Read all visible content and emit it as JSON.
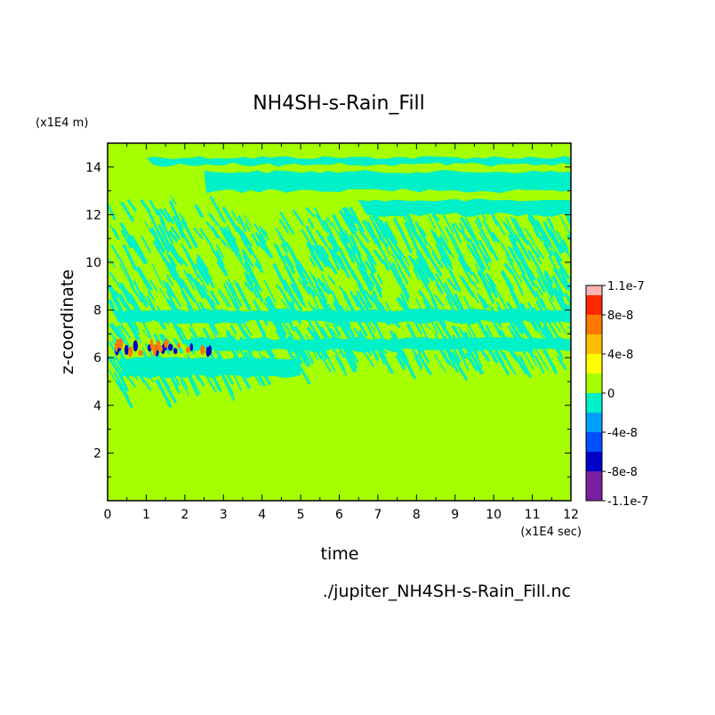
{
  "chart_data": {
    "type": "heatmap",
    "title": "NH4SH-s-Rain_Fill",
    "xlabel": "time",
    "ylabel": "z-coordinate",
    "x_unit": "(x1E4 sec)",
    "y_unit": "(x1E4 m)",
    "source_file": "./jupiter_NH4SH-s-Rain_Fill.nc",
    "xlim": [
      0,
      12
    ],
    "ylim": [
      0,
      15
    ],
    "x_ticks": [
      0,
      1,
      2,
      3,
      4,
      5,
      6,
      7,
      8,
      9,
      10,
      11,
      12
    ],
    "y_ticks": [
      2,
      4,
      6,
      8,
      10,
      12,
      14
    ],
    "grid": false,
    "colorbar": {
      "placement": "right",
      "labels": [
        "1.1e-7",
        "8e-8",
        "4e-8",
        "0",
        "-4e-8",
        "-8e-8",
        "-1.1e-7"
      ],
      "label_values": [
        1.1e-07,
        8e-08,
        4e-08,
        0,
        -4e-08,
        -8e-08,
        -1.1e-07
      ],
      "levels": [
        {
          "min": -1.1e-07,
          "max": -8e-08,
          "color": "#7a1fa0"
        },
        {
          "min": -8e-08,
          "max": -6e-08,
          "color": "#0000c8"
        },
        {
          "min": -6e-08,
          "max": -4e-08,
          "color": "#0050ff"
        },
        {
          "min": -4e-08,
          "max": -2e-08,
          "color": "#00a0ff"
        },
        {
          "min": -2e-08,
          "max": 0,
          "color": "#00f0c8"
        },
        {
          "min": 0,
          "max": 2e-08,
          "color": "#a6ff00"
        },
        {
          "min": 2e-08,
          "max": 4e-08,
          "color": "#ffff00"
        },
        {
          "min": 4e-08,
          "max": 6e-08,
          "color": "#ffbe00"
        },
        {
          "min": 6e-08,
          "max": 8e-08,
          "color": "#ff7800"
        },
        {
          "min": 8e-08,
          "max": 1e-07,
          "color": "#ff2800"
        },
        {
          "min": 1e-07,
          "max": 1.1e-07,
          "color": "#ffb4b4"
        }
      ]
    },
    "field": {
      "background_value": 1e-08,
      "regions": [
        {
          "kind": "band",
          "x": [
            1.0,
            12.0
          ],
          "z": [
            14.1,
            14.4
          ],
          "value": -1e-08
        },
        {
          "kind": "band",
          "x": [
            2.5,
            12.0
          ],
          "z": [
            13.0,
            13.8
          ],
          "value": -1e-08
        },
        {
          "kind": "band",
          "x": [
            6.5,
            12.0
          ],
          "z": [
            12.0,
            12.6
          ],
          "value": -1e-08
        },
        {
          "kind": "band",
          "x": [
            0.2,
            12.0
          ],
          "z": [
            7.5,
            8.0
          ],
          "value": -1e-08
        },
        {
          "kind": "band",
          "x": [
            2.0,
            12.0
          ],
          "z": [
            6.3,
            6.8
          ],
          "value": -1e-08
        },
        {
          "kind": "band",
          "x": [
            0.3,
            5.0
          ],
          "z": [
            5.2,
            6.0
          ],
          "value": -1e-08
        },
        {
          "kind": "streaks",
          "x": [
            0.0,
            12.0
          ],
          "z": [
            5.0,
            13.0
          ],
          "value": -1e-08
        },
        {
          "kind": "spots",
          "x": [
            0.2,
            2.7
          ],
          "z": [
            6.2,
            6.6
          ],
          "value": -8e-08
        },
        {
          "kind": "spots",
          "x": [
            0.2,
            2.7
          ],
          "z": [
            6.2,
            6.6
          ],
          "value": 7e-08
        }
      ]
    }
  }
}
